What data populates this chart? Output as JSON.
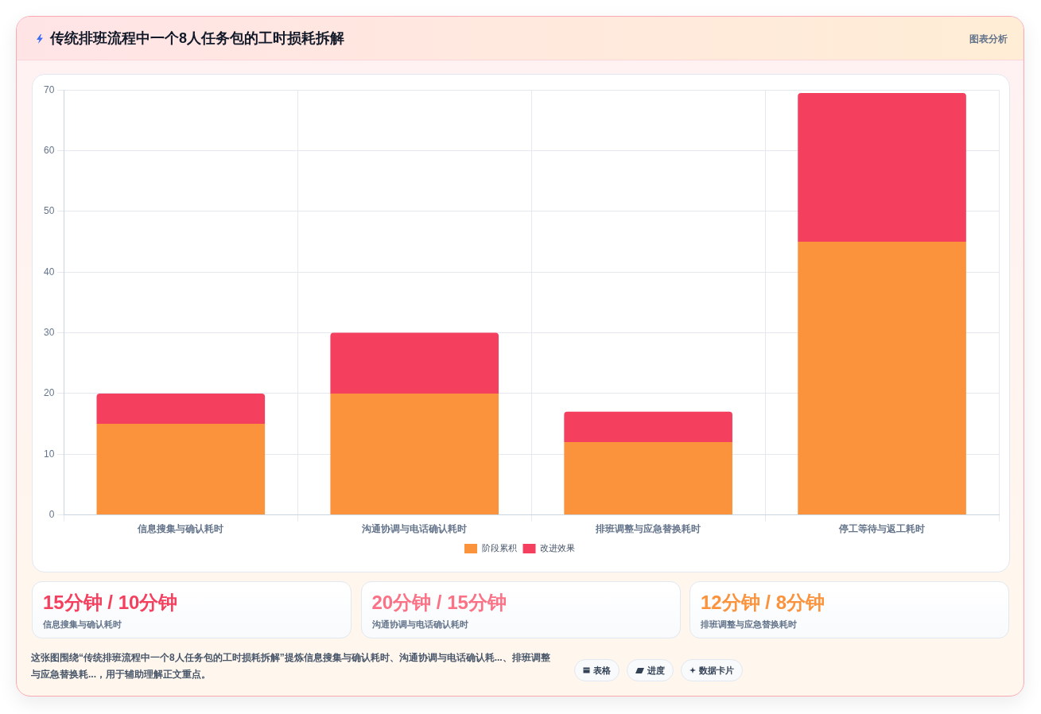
{
  "chart_data": [
    {
      "type": "bar",
      "title": "传统排班流程中一个8人任务包的工时损耗拆解",
      "categories": [
        "信息搜集与确认耗时",
        "沟通协调与电话确认耗时",
        "排班调整与应急替换耗时",
        "停工等待与返工耗时"
      ],
      "series": [
        {
          "name": "阶段累积",
          "color": "#fb923c",
          "values": [
            15,
            20,
            12,
            45
          ]
        },
        {
          "name": "改进效果",
          "color": "#f43f5e",
          "values": [
            5,
            10,
            5,
            24.5
          ]
        }
      ],
      "stacked": true,
      "ylim": [
        0,
        70
      ],
      "yticks": [
        0,
        10,
        20,
        30,
        40,
        50,
        60,
        70
      ],
      "grid": true,
      "legend": "bottom",
      "annotations": [
        "图表分析",
        "这张图围绕“传统排班流程中一个8人任务包的工时损耗拆解”提炼信息搜集与确认耗时、沟通协调与电话确认耗...、排班调整与应急替换耗...，用于辅助理解正文重点。",
        "表格",
        "进度",
        "数据卡片"
      ]
    },
    {
      "type": "other",
      "title": "15分钟 / 10分钟",
      "subtitle": "信息搜集与确认耗时",
      "color": "#f43f5e"
    },
    {
      "type": "other",
      "title": "20分钟 / 15分钟",
      "subtitle": "沟通协调与电话确认耗时",
      "color": "#fb7185"
    },
    {
      "type": "other",
      "title": "12分钟 / 8分钟",
      "subtitle": "排班调整与应急替换耗时",
      "color": "#fb923c"
    }
  ]
}
